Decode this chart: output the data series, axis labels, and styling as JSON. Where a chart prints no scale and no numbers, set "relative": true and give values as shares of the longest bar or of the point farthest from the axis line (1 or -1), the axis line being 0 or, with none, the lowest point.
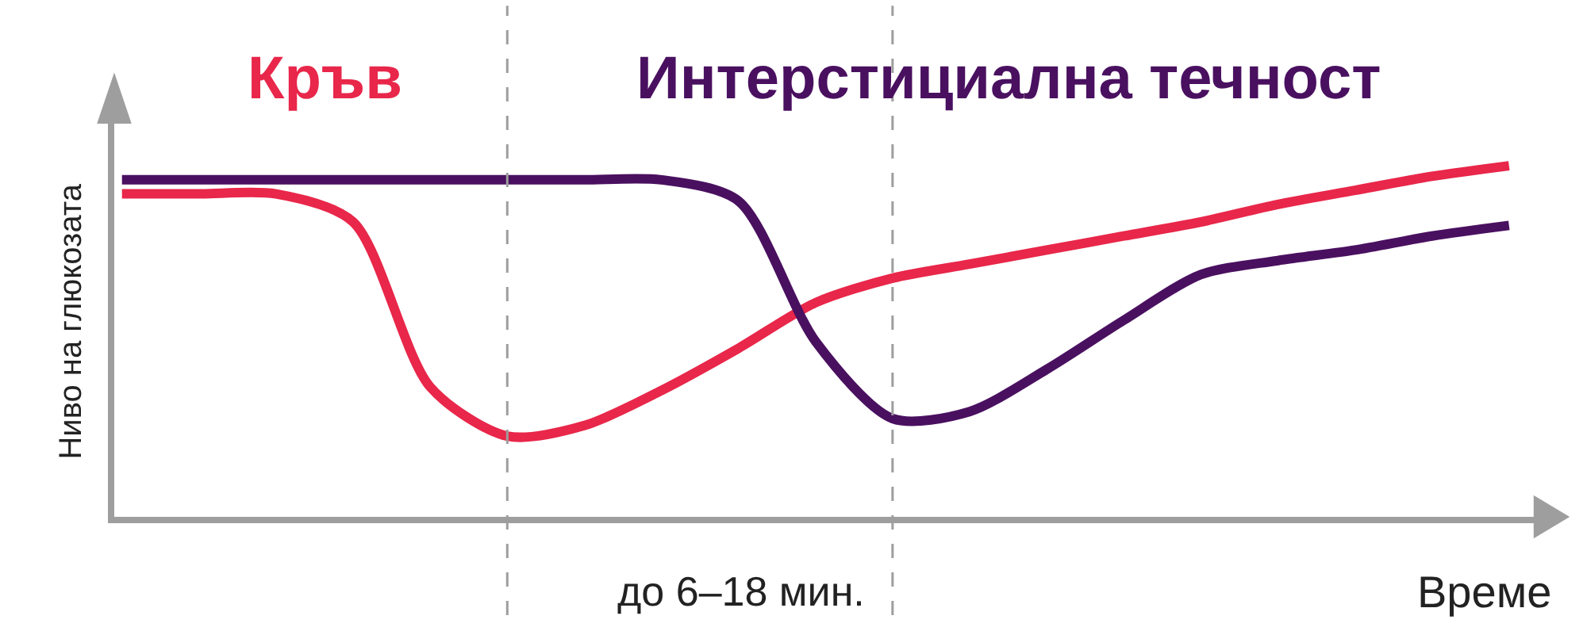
{
  "chart_data": {
    "type": "line",
    "relative": true,
    "xlabel": "Време",
    "ylabel": "Ниво на глюкозата",
    "categories": [
      null,
      null,
      null,
      null,
      null,
      null,
      null,
      null,
      null,
      null,
      null,
      null,
      null,
      null,
      null,
      null,
      null,
      null,
      null
    ],
    "series": [
      {
        "name": "Кръв",
        "color": "#e8274a",
        "values": [
          0.92,
          0.92,
          0.92,
          0.84,
          0.37,
          0.23,
          0.26,
          0.36,
          0.48,
          0.61,
          0.68,
          0.72,
          0.76,
          0.8,
          0.84,
          0.89,
          0.93,
          0.97,
          1.0
        ]
      },
      {
        "name": "Интерстициална течност",
        "color": "#4a1060",
        "values": [
          0.96,
          0.96,
          0.96,
          0.96,
          0.96,
          0.96,
          0.96,
          0.96,
          0.9,
          0.5,
          0.28,
          0.3,
          0.42,
          0.56,
          0.69,
          0.73,
          0.76,
          0.8,
          0.83
        ]
      }
    ],
    "annotations": [
      "до 6–18 мин."
    ],
    "legend": false,
    "marker": "none",
    "line_style": "solid"
  }
}
